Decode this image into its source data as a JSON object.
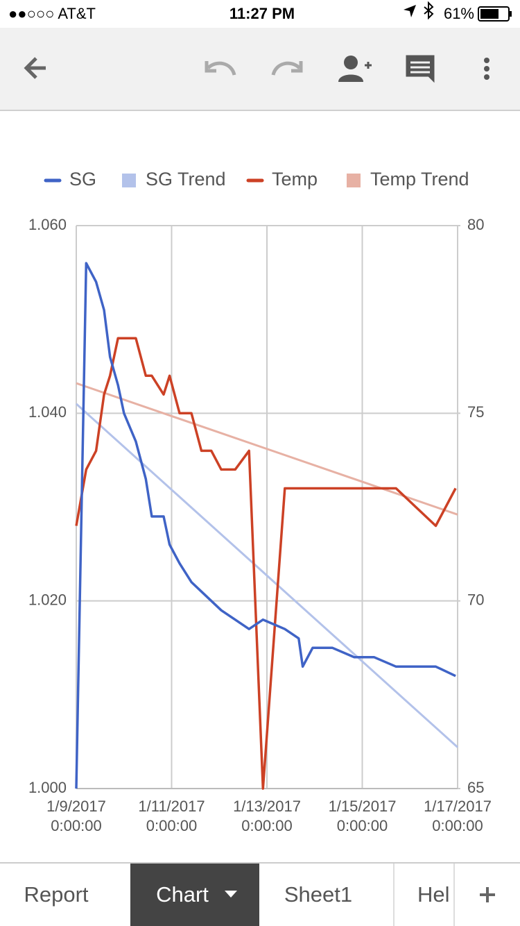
{
  "status_bar": {
    "carrier": "●●○○○ AT&T",
    "time": "11:27 PM",
    "battery": "61%"
  },
  "tabs": [
    "Report",
    "Chart",
    "Sheet1",
    "Hel"
  ],
  "chart_data": {
    "type": "line",
    "x": [
      "2017-01-09T00:00",
      "2017-01-09T05:00",
      "2017-01-09T10:00",
      "2017-01-09T14:00",
      "2017-01-09T17:00",
      "2017-01-09T21:00",
      "2017-01-10T00:00",
      "2017-01-10T06:00",
      "2017-01-10T11:00",
      "2017-01-10T14:00",
      "2017-01-10T20:00",
      "2017-01-10T23:00",
      "2017-01-11T04:00",
      "2017-01-11T10:00",
      "2017-01-11T15:00",
      "2017-01-11T20:00",
      "2017-01-12T01:00",
      "2017-01-12T08:00",
      "2017-01-12T15:00",
      "2017-01-12T22:00",
      "2017-01-13T09:00",
      "2017-01-13T16:00",
      "2017-01-13T18:00",
      "2017-01-13T23:00",
      "2017-01-14T09:00",
      "2017-01-14T20:00",
      "2017-01-15T06:00",
      "2017-01-15T17:00",
      "2017-01-16T03:00",
      "2017-01-16T13:00",
      "2017-01-16T23:00"
    ],
    "series": [
      {
        "name": "SG",
        "color": "#3f63c6",
        "values": [
          1.0,
          1.056,
          1.054,
          1.051,
          1.046,
          1.043,
          1.04,
          1.037,
          1.033,
          1.029,
          1.029,
          1.026,
          1.024,
          1.022,
          1.021,
          1.02,
          1.019,
          1.018,
          1.017,
          1.018,
          1.017,
          1.016,
          1.013,
          1.015,
          1.015,
          1.014,
          1.014,
          1.013,
          1.013,
          1.013,
          1.012
        ]
      },
      {
        "name": "SG Trend",
        "color": "#b3c2ea",
        "trendline": true,
        "x": [
          "2017-01-09T00:00",
          "2017-01-17T00:00"
        ],
        "values": [
          1.041,
          1.0044
        ]
      },
      {
        "name": "Temp",
        "color": "#cc4125",
        "axis": "y2",
        "values": [
          72,
          73.5,
          74,
          75.5,
          76,
          77,
          77,
          77,
          76,
          76,
          75.5,
          76,
          75,
          75,
          74,
          74,
          73.5,
          73.5,
          74,
          65,
          73,
          73,
          73,
          73,
          73,
          73,
          73,
          73,
          72.5,
          72,
          73
        ]
      },
      {
        "name": "Temp Trend",
        "color": "#e7b1a4",
        "axis": "y2",
        "trendline": true,
        "x": [
          "2017-01-09T00:00",
          "2017-01-17T00:00"
        ],
        "values": [
          75.8,
          72.3
        ]
      }
    ],
    "xlim": [
      "2017-01-09T00:00",
      "2017-01-17T00:00"
    ],
    "xticks": [
      {
        "value": "2017-01-09T00:00",
        "label": "1/9/2017 0:00:00"
      },
      {
        "value": "2017-01-11T00:00",
        "label": "1/11/2017 0:00:00"
      },
      {
        "value": "2017-01-13T00:00",
        "label": "1/13/2017 0:00:00"
      },
      {
        "value": "2017-01-15T00:00",
        "label": "1/15/2017 0:00:00"
      },
      {
        "value": "2017-01-17T00:00",
        "label": "1/17/2017 0:00:00"
      }
    ],
    "ylim": [
      1.0,
      1.06
    ],
    "yticks": [
      {
        "value": 1.0,
        "label": "1.000"
      },
      {
        "value": 1.02,
        "label": "1.020"
      },
      {
        "value": 1.04,
        "label": "1.040"
      },
      {
        "value": 1.06,
        "label": "1.060"
      }
    ],
    "y2lim": [
      65,
      80
    ],
    "y2ticks": [
      65,
      70,
      75,
      80
    ],
    "grid": true,
    "legend": "top"
  }
}
